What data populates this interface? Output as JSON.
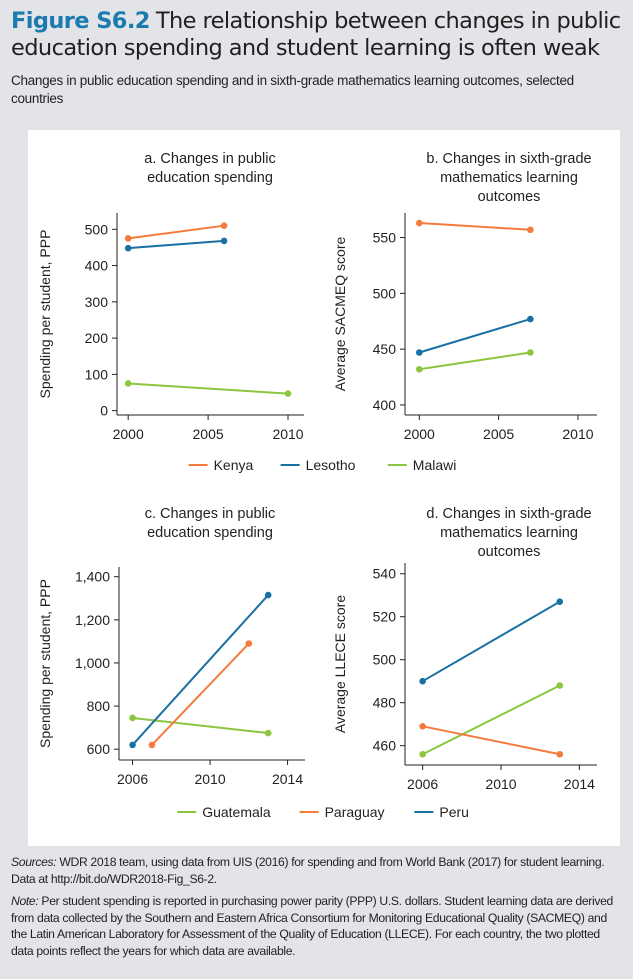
{
  "header": {
    "figure_label": "Figure S6.2",
    "title": "The relationship between changes in public education spending and student learning is often weak",
    "subtitle": "Changes in public education spending and in sixth-grade mathematics learning outcomes, selected countries"
  },
  "colors": {
    "title_accent": "#1b7bb0",
    "orange": "#f47b3b",
    "blue": "#1a6fa3",
    "green": "#8cc63f"
  },
  "chart_data": [
    {
      "id": "a",
      "type": "line",
      "title_lines": [
        "a. Changes in public",
        "education spending"
      ],
      "xlabel": "",
      "ylabel": "Spending per student, PPP",
      "xlim": [
        1999.3,
        2011
      ],
      "ylim": [
        -12,
        545
      ],
      "xticks": [
        2000,
        2005,
        2010
      ],
      "yticks": [
        0,
        100,
        200,
        300,
        400,
        500
      ],
      "series": [
        {
          "name": "Kenya",
          "color": "#f47b3b",
          "points": [
            [
              2000,
              475
            ],
            [
              2006,
              510
            ]
          ]
        },
        {
          "name": "Lesotho",
          "color": "#1a6fa3",
          "points": [
            [
              2000,
              448
            ],
            [
              2006,
              468
            ]
          ]
        },
        {
          "name": "Malawi",
          "color": "#8cc63f",
          "points": [
            [
              2000,
              75
            ],
            [
              2010,
              47
            ]
          ]
        }
      ]
    },
    {
      "id": "b",
      "type": "line",
      "title_lines": [
        "b. Changes in sixth-grade",
        "mathematics learning",
        "outcomes"
      ],
      "xlabel": "",
      "ylabel": "Average SACMEQ score",
      "xlim": [
        1999.1,
        2011.2
      ],
      "ylim": [
        391,
        572
      ],
      "xticks": [
        2000,
        2005,
        2010
      ],
      "yticks": [
        400,
        450,
        500,
        550
      ],
      "series": [
        {
          "name": "Kenya",
          "color": "#f47b3b",
          "points": [
            [
              2000,
              563
            ],
            [
              2007,
              557
            ]
          ]
        },
        {
          "name": "Lesotho",
          "color": "#1a6fa3",
          "points": [
            [
              2000,
              447
            ],
            [
              2007,
              477
            ]
          ]
        },
        {
          "name": "Malawi",
          "color": "#8cc63f",
          "points": [
            [
              2000,
              432
            ],
            [
              2007,
              447
            ]
          ]
        }
      ]
    },
    {
      "id": "c",
      "type": "line",
      "title_lines": [
        "c. Changes in public",
        "education spending"
      ],
      "xlabel": "",
      "ylabel": "Spending per student, PPP",
      "xlim": [
        2005.3,
        2014.9
      ],
      "ylim": [
        550,
        1445
      ],
      "xticks": [
        2006,
        2010,
        2014
      ],
      "yticks": [
        600,
        800,
        1000,
        1200,
        1400
      ],
      "series": [
        {
          "name": "Guatemala",
          "color": "#8cc63f",
          "points": [
            [
              2006,
              745
            ],
            [
              2013,
              675
            ]
          ]
        },
        {
          "name": "Paraguay",
          "color": "#f47b3b",
          "points": [
            [
              2007,
              620
            ],
            [
              2012,
              1090
            ]
          ]
        },
        {
          "name": "Peru",
          "color": "#1a6fa3",
          "points": [
            [
              2006,
              620
            ],
            [
              2013,
              1315
            ]
          ]
        }
      ]
    },
    {
      "id": "d",
      "type": "line",
      "title_lines": [
        "d. Changes in sixth-grade",
        "mathematics learning",
        "outcomes"
      ],
      "xlabel": "",
      "ylabel": "Average LLECE score",
      "xlim": [
        2005.1,
        2014.9
      ],
      "ylim": [
        451,
        545
      ],
      "xticks": [
        2006,
        2010,
        2014
      ],
      "yticks": [
        460,
        480,
        500,
        520,
        540
      ],
      "series": [
        {
          "name": "Peru",
          "color": "#1a6fa3",
          "points": [
            [
              2006,
              490
            ],
            [
              2013,
              527
            ]
          ]
        },
        {
          "name": "Guatemala",
          "color": "#8cc63f",
          "points": [
            [
              2006,
              456
            ],
            [
              2013,
              488
            ]
          ]
        },
        {
          "name": "Paraguay",
          "color": "#f47b3b",
          "points": [
            [
              2006,
              469
            ],
            [
              2013,
              456
            ]
          ]
        }
      ]
    }
  ],
  "legends": [
    {
      "entries": [
        {
          "name": "Kenya",
          "color": "#f47b3b"
        },
        {
          "name": "Lesotho",
          "color": "#1a6fa3"
        },
        {
          "name": "Malawi",
          "color": "#8cc63f"
        }
      ]
    },
    {
      "entries": [
        {
          "name": "Guatemala",
          "color": "#8cc63f"
        },
        {
          "name": "Paraguay",
          "color": "#f47b3b"
        },
        {
          "name": "Peru",
          "color": "#1a6fa3"
        }
      ]
    }
  ],
  "notes": {
    "sources_label": "Sources:",
    "sources_text": " WDR 2018 team, using data from UIS (2016) for spending and from World Bank (2017) for student learning. Data at http://bit.do/WDR2018-Fig_S6-2.",
    "note_label": "Note:",
    "note_text": " Per student spending is reported in purchasing power parity (PPP) U.S. dollars. Student learning data are derived from data collected by the Southern and Eastern Africa Consortium for Monitoring Educational Quality (SACMEQ) and the Latin American Laboratory for Assessment of the Quality of Education (LLECE). For each country, the two plotted data points reflect the years for which data are available."
  }
}
